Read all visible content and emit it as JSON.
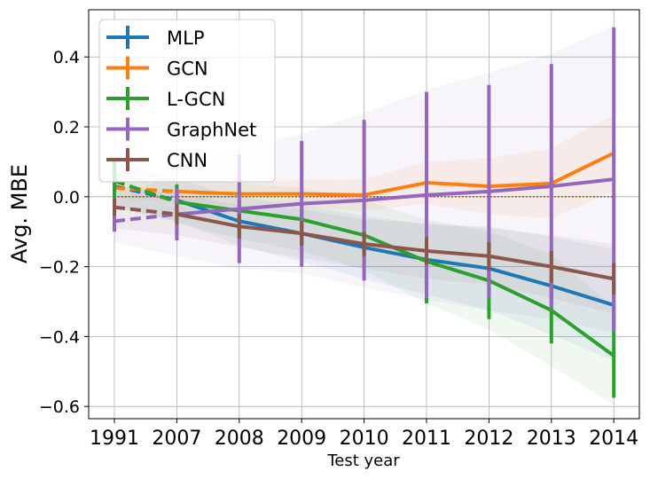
{
  "chart_data": {
    "type": "line",
    "title": "",
    "xlabel": "Test year",
    "ylabel": "Avg. MBE",
    "categories": [
      "1991",
      "2007",
      "2008",
      "2009",
      "2010",
      "2011",
      "2012",
      "2013",
      "2014"
    ],
    "ylim": [
      -0.635,
      0.535
    ],
    "yticks": [
      -0.6,
      -0.4,
      -0.2,
      0.0,
      0.2,
      0.4
    ],
    "ytick_labels": [
      "−0.6",
      "−0.4",
      "−0.2",
      "0.0",
      "0.2",
      "0.4"
    ],
    "grid": true,
    "legend_position": "top-left",
    "reference_line": {
      "y": 0.0,
      "color": "#ff0000",
      "style": "dotted"
    },
    "series": [
      {
        "name": "MLP",
        "color": "#1f77b4",
        "values": [
          0.03,
          -0.01,
          -0.07,
          -0.105,
          -0.145,
          -0.18,
          -0.205,
          -0.255,
          -0.31
        ],
        "err": [
          0.02,
          0.02,
          0.03,
          0.03,
          0.03,
          0.03,
          0.03,
          0.04,
          0.07
        ],
        "band": [
          0.06,
          0.06,
          0.07,
          0.08,
          0.09,
          0.1,
          0.12,
          0.14,
          0.16
        ]
      },
      {
        "name": "GCN",
        "color": "#ff7f0e",
        "values": [
          0.025,
          0.015,
          0.008,
          0.008,
          0.005,
          0.04,
          0.03,
          0.038,
          0.125
        ],
        "err": [
          0.01,
          0.01,
          0.01,
          0.01,
          0.01,
          0.02,
          0.02,
          0.02,
          0.02
        ],
        "band": [
          0.03,
          0.03,
          0.035,
          0.04,
          0.045,
          0.06,
          0.08,
          0.1,
          0.11
        ]
      },
      {
        "name": "L-GCN",
        "color": "#2ca02c",
        "values": [
          0.045,
          -0.015,
          -0.04,
          -0.065,
          -0.11,
          -0.185,
          -0.24,
          -0.325,
          -0.455
        ],
        "err": [
          0.06,
          0.05,
          0.03,
          0.03,
          0.04,
          0.12,
          0.11,
          0.095,
          0.12
        ],
        "band": [
          0.07,
          0.06,
          0.08,
          0.09,
          0.1,
          0.12,
          0.14,
          0.16,
          0.14
        ]
      },
      {
        "name": "GraphNet",
        "color": "#9467bd",
        "values": [
          -0.07,
          -0.05,
          -0.035,
          -0.02,
          -0.01,
          0.005,
          0.015,
          0.03,
          0.05
        ],
        "err": [
          0.03,
          0.075,
          0.155,
          0.18,
          0.23,
          0.295,
          0.305,
          0.35,
          0.435
        ],
        "band": [
          0.06,
          0.12,
          0.17,
          0.2,
          0.25,
          0.3,
          0.34,
          0.38,
          0.44
        ]
      },
      {
        "name": "CNN",
        "color": "#8c564b",
        "values": [
          -0.03,
          -0.05,
          -0.085,
          -0.105,
          -0.135,
          -0.155,
          -0.17,
          -0.2,
          -0.235
        ],
        "err": [
          0.025,
          0.03,
          0.035,
          0.035,
          0.035,
          0.04,
          0.04,
          0.045,
          0.045
        ],
        "band": [
          0.06,
          0.06,
          0.06,
          0.07,
          0.07,
          0.08,
          0.08,
          0.09,
          0.1
        ]
      }
    ]
  }
}
